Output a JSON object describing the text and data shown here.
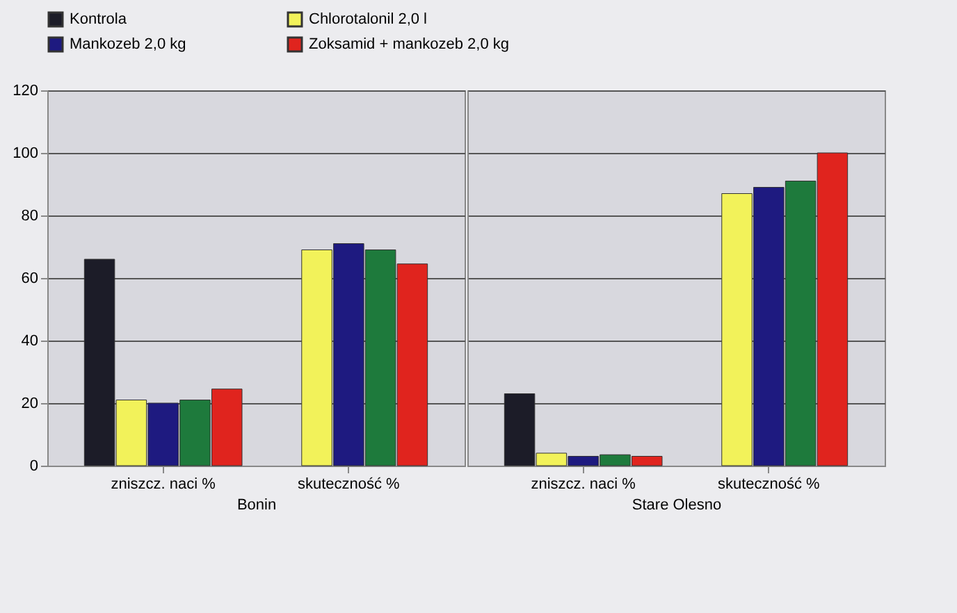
{
  "chart_data": [
    {
      "type": "bar",
      "xlabel": "Bonin",
      "categories": [
        "zniszcz. naci %",
        "skuteczność %"
      ],
      "series": [
        {
          "name": "Kontrola",
          "color": "#1c1c28",
          "values": [
            66,
            null
          ]
        },
        {
          "name": "Chlorotalonil 2,0 l",
          "color": "#f2f25a",
          "values": [
            21,
            69
          ]
        },
        {
          "name": "Mankozeb 2,0 kg",
          "color": "#1e1a80",
          "values": [
            20,
            71
          ]
        },
        {
          "color": "#1e7a3c",
          "values": [
            21,
            69
          ]
        },
        {
          "name": "Zoksamid + mankozeb 2,0 kg",
          "color": "#e0241e",
          "values": [
            24.5,
            64.5
          ]
        }
      ],
      "ylim": [
        0,
        120
      ],
      "yticks": [
        0,
        20,
        40,
        60,
        80,
        100,
        120
      ],
      "grid": "y",
      "legend": "top"
    },
    {
      "type": "bar",
      "xlabel": "Stare Olesno",
      "categories": [
        "zniszcz. naci %",
        "skuteczność %"
      ],
      "series": [
        {
          "color": "#1c1c28",
          "values": [
            23,
            null
          ]
        },
        {
          "color": "#f2f25a",
          "values": [
            4,
            87
          ]
        },
        {
          "color": "#1e1a80",
          "values": [
            3,
            89
          ]
        },
        {
          "color": "#1e7a3c",
          "values": [
            3.5,
            91
          ]
        },
        {
          "color": "#e0241e",
          "values": [
            3,
            100
          ]
        }
      ],
      "ylim": [
        0,
        120
      ],
      "yticks": [
        0,
        20,
        40,
        60,
        80,
        100,
        120
      ],
      "grid": "y",
      "tick_labels": "x"
    }
  ]
}
